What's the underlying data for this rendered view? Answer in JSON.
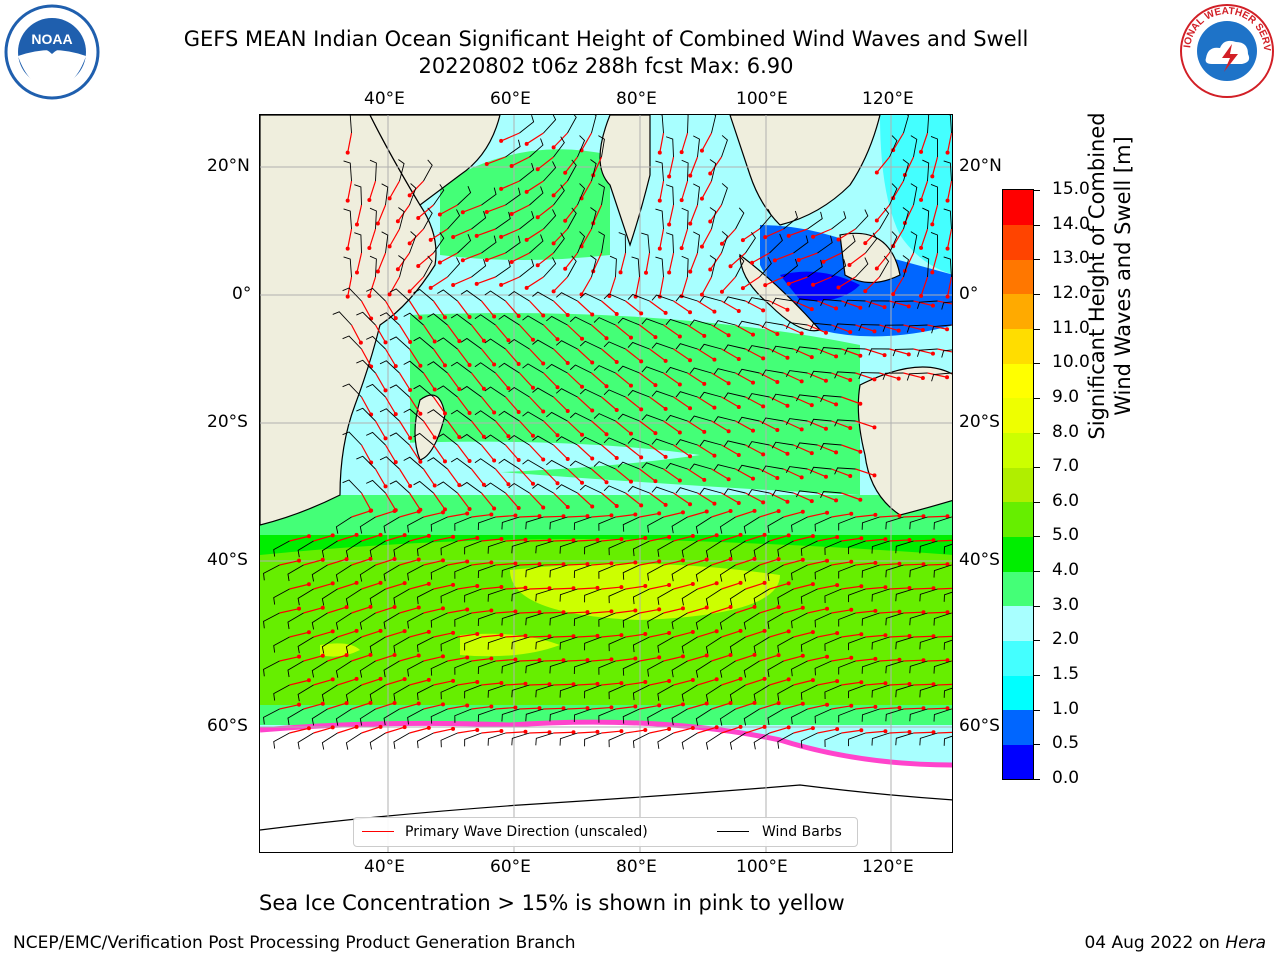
{
  "title": {
    "line1": "GEFS MEAN Indian Ocean Significant Height of Combined Wind Waves and Swell",
    "line2": "20220802 t06z 288h fcst   Max: 6.90"
  },
  "logos": {
    "left": {
      "text": "NOAA",
      "icon": "noaa-logo-icon",
      "color": "#1f5fae"
    },
    "right": {
      "text": "NATIONAL WEATHER SERVICE",
      "icon": "nws-logo-icon",
      "color": "#d21f26"
    }
  },
  "map": {
    "lon_labels": [
      "40°E",
      "60°E",
      "80°E",
      "100°E",
      "120°E"
    ],
    "lat_labels": [
      "20°N",
      "0°",
      "20°S",
      "40°S",
      "60°S"
    ],
    "land_color": "#efeedd",
    "ice_color": "#ffffff",
    "gridline_color": "#b0b0b0"
  },
  "legend": {
    "items": [
      {
        "label": "Primary Wave Direction (unscaled)",
        "color": "#ff0000"
      },
      {
        "label": "Wind Barbs",
        "color": "#000000"
      }
    ]
  },
  "colorbar": {
    "label_line1": "Significant Height of Combined",
    "label_line2": "Wind Waves and Swell [m]",
    "ticks": [
      "0.0",
      "0.5",
      "1.0",
      "1.5",
      "2.0",
      "3.0",
      "4.0",
      "5.0",
      "6.0",
      "7.0",
      "8.0",
      "9.0",
      "10.0",
      "11.0",
      "12.0",
      "13.0",
      "14.0",
      "15.0"
    ],
    "colors": [
      "#0000ff",
      "#0066ff",
      "#00ffff",
      "#44ffff",
      "#a8ffff",
      "#44ff77",
      "#00ee00",
      "#66ee00",
      "#b0ee00",
      "#ccff00",
      "#eeff00",
      "#ffff00",
      "#ffdd00",
      "#ffaa00",
      "#ff7700",
      "#ff4400",
      "#ff0000"
    ]
  },
  "ice_note": "Sea Ice Concentration > 15% is shown in pink to yellow",
  "footer": {
    "left": "NCEP/EMC/Verification Post Processing Product Generation Branch",
    "right_date": "04 Aug 2022 on ",
    "right_host": "Hera"
  }
}
